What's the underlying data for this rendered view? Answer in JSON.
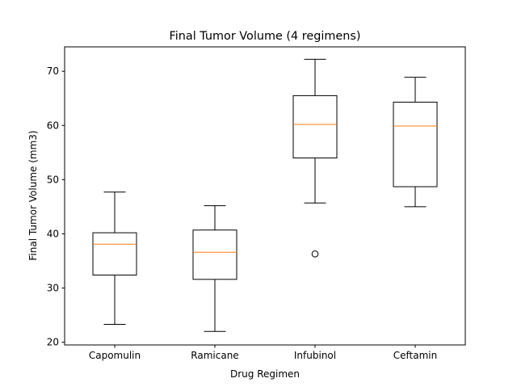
{
  "chart_data": {
    "type": "box",
    "title": "Final Tumor Volume (4 regimens)",
    "xlabel": "Drug Regimen",
    "ylabel": "Final Tumor Volume (mm3)",
    "categories": [
      "Capomulin",
      "Ramicane",
      "Infubinol",
      "Ceftamin"
    ],
    "ylim": [
      19.5,
      74.5
    ],
    "yticks": [
      20,
      30,
      40,
      50,
      60,
      70
    ],
    "ytick_labels": [
      "20",
      "30",
      "40",
      "50",
      "60",
      "70"
    ],
    "boxes": [
      {
        "category": "Capomulin",
        "whisker_low": 23.3,
        "q1": 32.4,
        "median": 38.1,
        "q3": 40.2,
        "whisker_high": 47.7,
        "outliers": []
      },
      {
        "category": "Ramicane",
        "whisker_low": 22.0,
        "q1": 31.6,
        "median": 36.6,
        "q3": 40.7,
        "whisker_high": 45.2,
        "outliers": []
      },
      {
        "category": "Infubinol",
        "whisker_low": 45.7,
        "q1": 54.0,
        "median": 60.2,
        "q3": 65.5,
        "whisker_high": 72.2,
        "outliers": [
          36.3
        ]
      },
      {
        "category": "Ceftamin",
        "whisker_low": 45.0,
        "q1": 48.7,
        "median": 59.9,
        "q3": 64.3,
        "whisker_high": 68.9,
        "outliers": []
      }
    ],
    "grid": false,
    "legend": "none",
    "colors": {
      "box": "#000000",
      "median": "#ff7f0e",
      "outlier": "#000000",
      "axes": "#000000"
    }
  }
}
